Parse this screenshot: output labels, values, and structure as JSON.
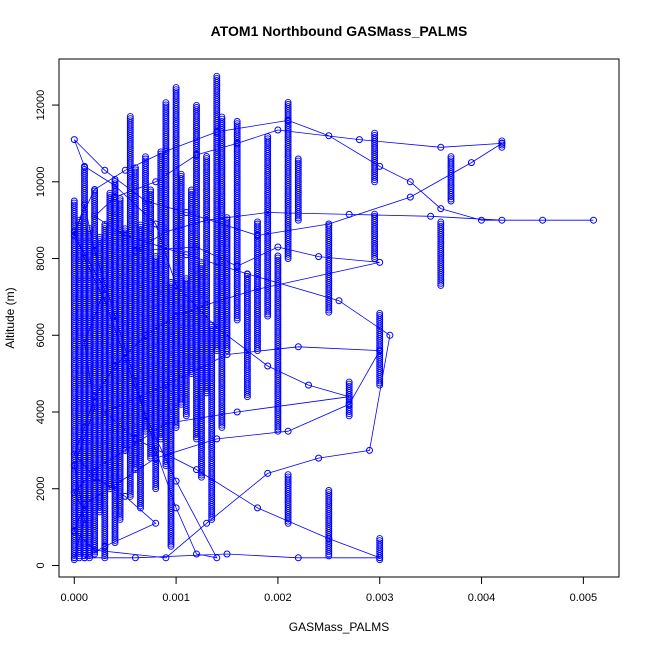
{
  "chart_data": {
    "type": "scatter",
    "title": "ATOM1 Northbound GASMass_PALMS",
    "xlabel": "GASMass_PALMS",
    "ylabel": "Altitude (m)",
    "xlim": [
      -0.00015,
      0.00535
    ],
    "ylim": [
      -300,
      13200
    ],
    "x_ticks": [
      0.0,
      0.001,
      0.002,
      0.003,
      0.004,
      0.005
    ],
    "x_tick_labels": [
      "0.000",
      "0.001",
      "0.002",
      "0.003",
      "0.004",
      "0.005"
    ],
    "y_ticks": [
      0,
      2000,
      4000,
      6000,
      8000,
      10000,
      12000
    ],
    "y_tick_labels": [
      "0",
      "2000",
      "4000",
      "6000",
      "8000",
      "10000",
      "12000"
    ],
    "grid": false,
    "legend": "none",
    "marker": "open-circle",
    "connected": true,
    "color": "#0000ff",
    "series": [
      {
        "values": [
          [
            0.0,
            200
          ],
          [
            0.0001,
            1200
          ],
          [
            0.0,
            2600
          ],
          [
            0.0002,
            4100
          ],
          [
            0.0001,
            5800
          ],
          [
            0.0003,
            7200
          ],
          [
            0.0,
            8600
          ],
          [
            0.0001,
            9400
          ],
          [
            0.0002,
            8200
          ],
          [
            0.0004,
            6500
          ],
          [
            0.0006,
            4800
          ],
          [
            0.0008,
            3000
          ],
          [
            0.001,
            1500
          ],
          [
            0.0012,
            300
          ],
          [
            0.0014,
            200
          ],
          [
            0.001,
            2200
          ],
          [
            0.0007,
            3900
          ],
          [
            0.0005,
            5400
          ],
          [
            0.0003,
            6900
          ],
          [
            0.0001,
            8000
          ],
          [
            0.0,
            8700
          ],
          [
            0.0002,
            9800
          ],
          [
            0.0005,
            10300
          ],
          [
            0.0009,
            10800
          ],
          [
            0.0014,
            11300
          ],
          [
            0.0021,
            11600
          ],
          [
            0.0025,
            11200
          ],
          [
            0.003,
            10400
          ],
          [
            0.0033,
            10000
          ],
          [
            0.0036,
            9300
          ],
          [
            0.004,
            9000
          ],
          [
            0.0046,
            9000
          ],
          [
            0.0051,
            9000
          ],
          [
            0.0042,
            9000
          ],
          [
            0.0035,
            9100
          ],
          [
            0.0027,
            9150
          ],
          [
            0.0019,
            9200
          ],
          [
            0.0013,
            9000
          ],
          [
            0.0009,
            8700
          ],
          [
            0.0006,
            8200
          ],
          [
            0.0012,
            8300
          ],
          [
            0.0016,
            7800
          ],
          [
            0.002,
            8300
          ],
          [
            0.0024,
            8050
          ],
          [
            0.003,
            7900
          ],
          [
            0.0018,
            7200
          ],
          [
            0.0013,
            6800
          ],
          [
            0.001,
            6500
          ],
          [
            0.0007,
            6000
          ],
          [
            0.0004,
            5200
          ],
          [
            0.0002,
            4400
          ],
          [
            0.0001,
            3600
          ],
          [
            0.0,
            2900
          ],
          [
            0.0002,
            2300
          ],
          [
            0.0005,
            1800
          ],
          [
            0.0008,
            1100
          ],
          [
            0.0003,
            500
          ],
          [
            0.0001,
            200
          ],
          [
            0.0006,
            200
          ],
          [
            0.0015,
            300
          ],
          [
            0.0022,
            200
          ],
          [
            0.003,
            200
          ],
          [
            0.0025,
            700
          ],
          [
            0.0018,
            1500
          ],
          [
            0.0012,
            2500
          ],
          [
            0.0006,
            3300
          ],
          [
            0.0003,
            4000
          ],
          [
            0.0009,
            4700
          ],
          [
            0.0015,
            5500
          ],
          [
            0.0022,
            5700
          ],
          [
            0.003,
            5600
          ],
          [
            0.0027,
            4200
          ],
          [
            0.0021,
            3500
          ],
          [
            0.0014,
            3300
          ],
          [
            0.0008,
            2800
          ],
          [
            0.0004,
            2100
          ],
          [
            0.0001,
            1600
          ],
          [
            0.0,
            900
          ],
          [
            0.0002,
            400
          ],
          [
            0.0009,
            200
          ],
          [
            0.0013,
            1100
          ],
          [
            0.0019,
            2400
          ],
          [
            0.0024,
            2800
          ],
          [
            0.0029,
            3000
          ],
          [
            0.0031,
            6000
          ],
          [
            0.0026,
            6900
          ],
          [
            0.0017,
            7600
          ],
          [
            0.0011,
            8100
          ],
          [
            0.0005,
            8600
          ],
          [
            0.0002,
            9100
          ],
          [
            0.0004,
            9600
          ],
          [
            0.0008,
            10000
          ],
          [
            0.0012,
            10700
          ],
          [
            0.0016,
            11000
          ],
          [
            0.002,
            11350
          ],
          [
            0.0028,
            11100
          ],
          [
            0.0036,
            10900
          ],
          [
            0.0042,
            11000
          ],
          [
            0.0039,
            10500
          ],
          [
            0.0033,
            9600
          ],
          [
            0.0025,
            8900
          ],
          [
            0.0018,
            8600
          ],
          [
            0.0011,
            9200
          ],
          [
            0.0007,
            9500
          ],
          [
            0.0003,
            10300
          ],
          [
            0.0,
            11100
          ],
          [
            0.0001,
            10400
          ],
          [
            0.0004,
            9900
          ],
          [
            0.0008,
            8900
          ],
          [
            0.001,
            7300
          ],
          [
            0.0014,
            6200
          ],
          [
            0.0019,
            5200
          ],
          [
            0.0023,
            4700
          ],
          [
            0.0027,
            4400
          ],
          [
            0.0016,
            4000
          ],
          [
            0.0009,
            3700
          ],
          [
            0.0005,
            3000
          ],
          [
            0.0002,
            2500
          ],
          [
            0.0,
            1900
          ],
          [
            0.0001,
            1400
          ]
        ]
      }
    ],
    "columns": [
      {
        "x": 0.0,
        "y0": 150,
        "y1": 9500
      },
      {
        "x": 5e-05,
        "y0": 200,
        "y1": 9000
      },
      {
        "x": 0.0001,
        "y0": 200,
        "y1": 10400
      },
      {
        "x": 0.00015,
        "y0": 200,
        "y1": 8800
      },
      {
        "x": 0.0002,
        "y0": 300,
        "y1": 9800
      },
      {
        "x": 0.00025,
        "y0": 1400,
        "y1": 8600
      },
      {
        "x": 0.0003,
        "y0": 200,
        "y1": 8900
      },
      {
        "x": 0.00035,
        "y0": 2000,
        "y1": 9700
      },
      {
        "x": 0.0004,
        "y0": 600,
        "y1": 10100
      },
      {
        "x": 0.00045,
        "y0": 1200,
        "y1": 9600
      },
      {
        "x": 0.0005,
        "y0": 3000,
        "y1": 8800
      },
      {
        "x": 0.00055,
        "y0": 1800,
        "y1": 11700
      },
      {
        "x": 0.0006,
        "y0": 2500,
        "y1": 10400
      },
      {
        "x": 0.00065,
        "y0": 1500,
        "y1": 8900
      },
      {
        "x": 0.0007,
        "y0": 3500,
        "y1": 10700
      },
      {
        "x": 0.00075,
        "y0": 2800,
        "y1": 9800
      },
      {
        "x": 0.0008,
        "y0": 2000,
        "y1": 8100
      },
      {
        "x": 0.00085,
        "y0": 3300,
        "y1": 10800
      },
      {
        "x": 0.0009,
        "y0": 2600,
        "y1": 12100
      },
      {
        "x": 0.00095,
        "y0": 500,
        "y1": 7400
      },
      {
        "x": 0.001,
        "y0": 3600,
        "y1": 12500
      },
      {
        "x": 0.00105,
        "y0": 4200,
        "y1": 10200
      },
      {
        "x": 0.0011,
        "y0": 3900,
        "y1": 7500
      },
      {
        "x": 0.00115,
        "y0": 5000,
        "y1": 9800
      },
      {
        "x": 0.0012,
        "y0": 3300,
        "y1": 12000
      },
      {
        "x": 0.00125,
        "y0": 2300,
        "y1": 7900
      },
      {
        "x": 0.0013,
        "y0": 4500,
        "y1": 10700
      },
      {
        "x": 0.00135,
        "y0": 1200,
        "y1": 6300
      },
      {
        "x": 0.0014,
        "y0": 5600,
        "y1": 12800
      },
      {
        "x": 0.00145,
        "y0": 3600,
        "y1": 11700
      },
      {
        "x": 0.0015,
        "y0": 5600,
        "y1": 9100
      },
      {
        "x": 0.0016,
        "y0": 6400,
        "y1": 11600
      },
      {
        "x": 0.0017,
        "y0": 4400,
        "y1": 7600
      },
      {
        "x": 0.0018,
        "y0": 5600,
        "y1": 9000
      },
      {
        "x": 0.0019,
        "y0": 6500,
        "y1": 11200
      },
      {
        "x": 0.002,
        "y0": 3500,
        "y1": 8100
      },
      {
        "x": 0.0021,
        "y0": 1100,
        "y1": 2400
      },
      {
        "x": 0.0021,
        "y0": 8000,
        "y1": 12100
      },
      {
        "x": 0.0022,
        "y0": 9000,
        "y1": 10600
      },
      {
        "x": 0.0025,
        "y0": 6600,
        "y1": 8900
      },
      {
        "x": 0.0025,
        "y0": 250,
        "y1": 2000
      },
      {
        "x": 0.0027,
        "y0": 3900,
        "y1": 4800
      },
      {
        "x": 0.003,
        "y0": 4700,
        "y1": 6600
      },
      {
        "x": 0.003,
        "y0": 150,
        "y1": 750
      },
      {
        "x": 0.00295,
        "y0": 8000,
        "y1": 9200
      },
      {
        "x": 0.00295,
        "y0": 10000,
        "y1": 11300
      },
      {
        "x": 0.0036,
        "y0": 7300,
        "y1": 9000
      },
      {
        "x": 0.0037,
        "y0": 9500,
        "y1": 10700
      },
      {
        "x": 0.0042,
        "y0": 10900,
        "y1": 11100
      }
    ]
  }
}
